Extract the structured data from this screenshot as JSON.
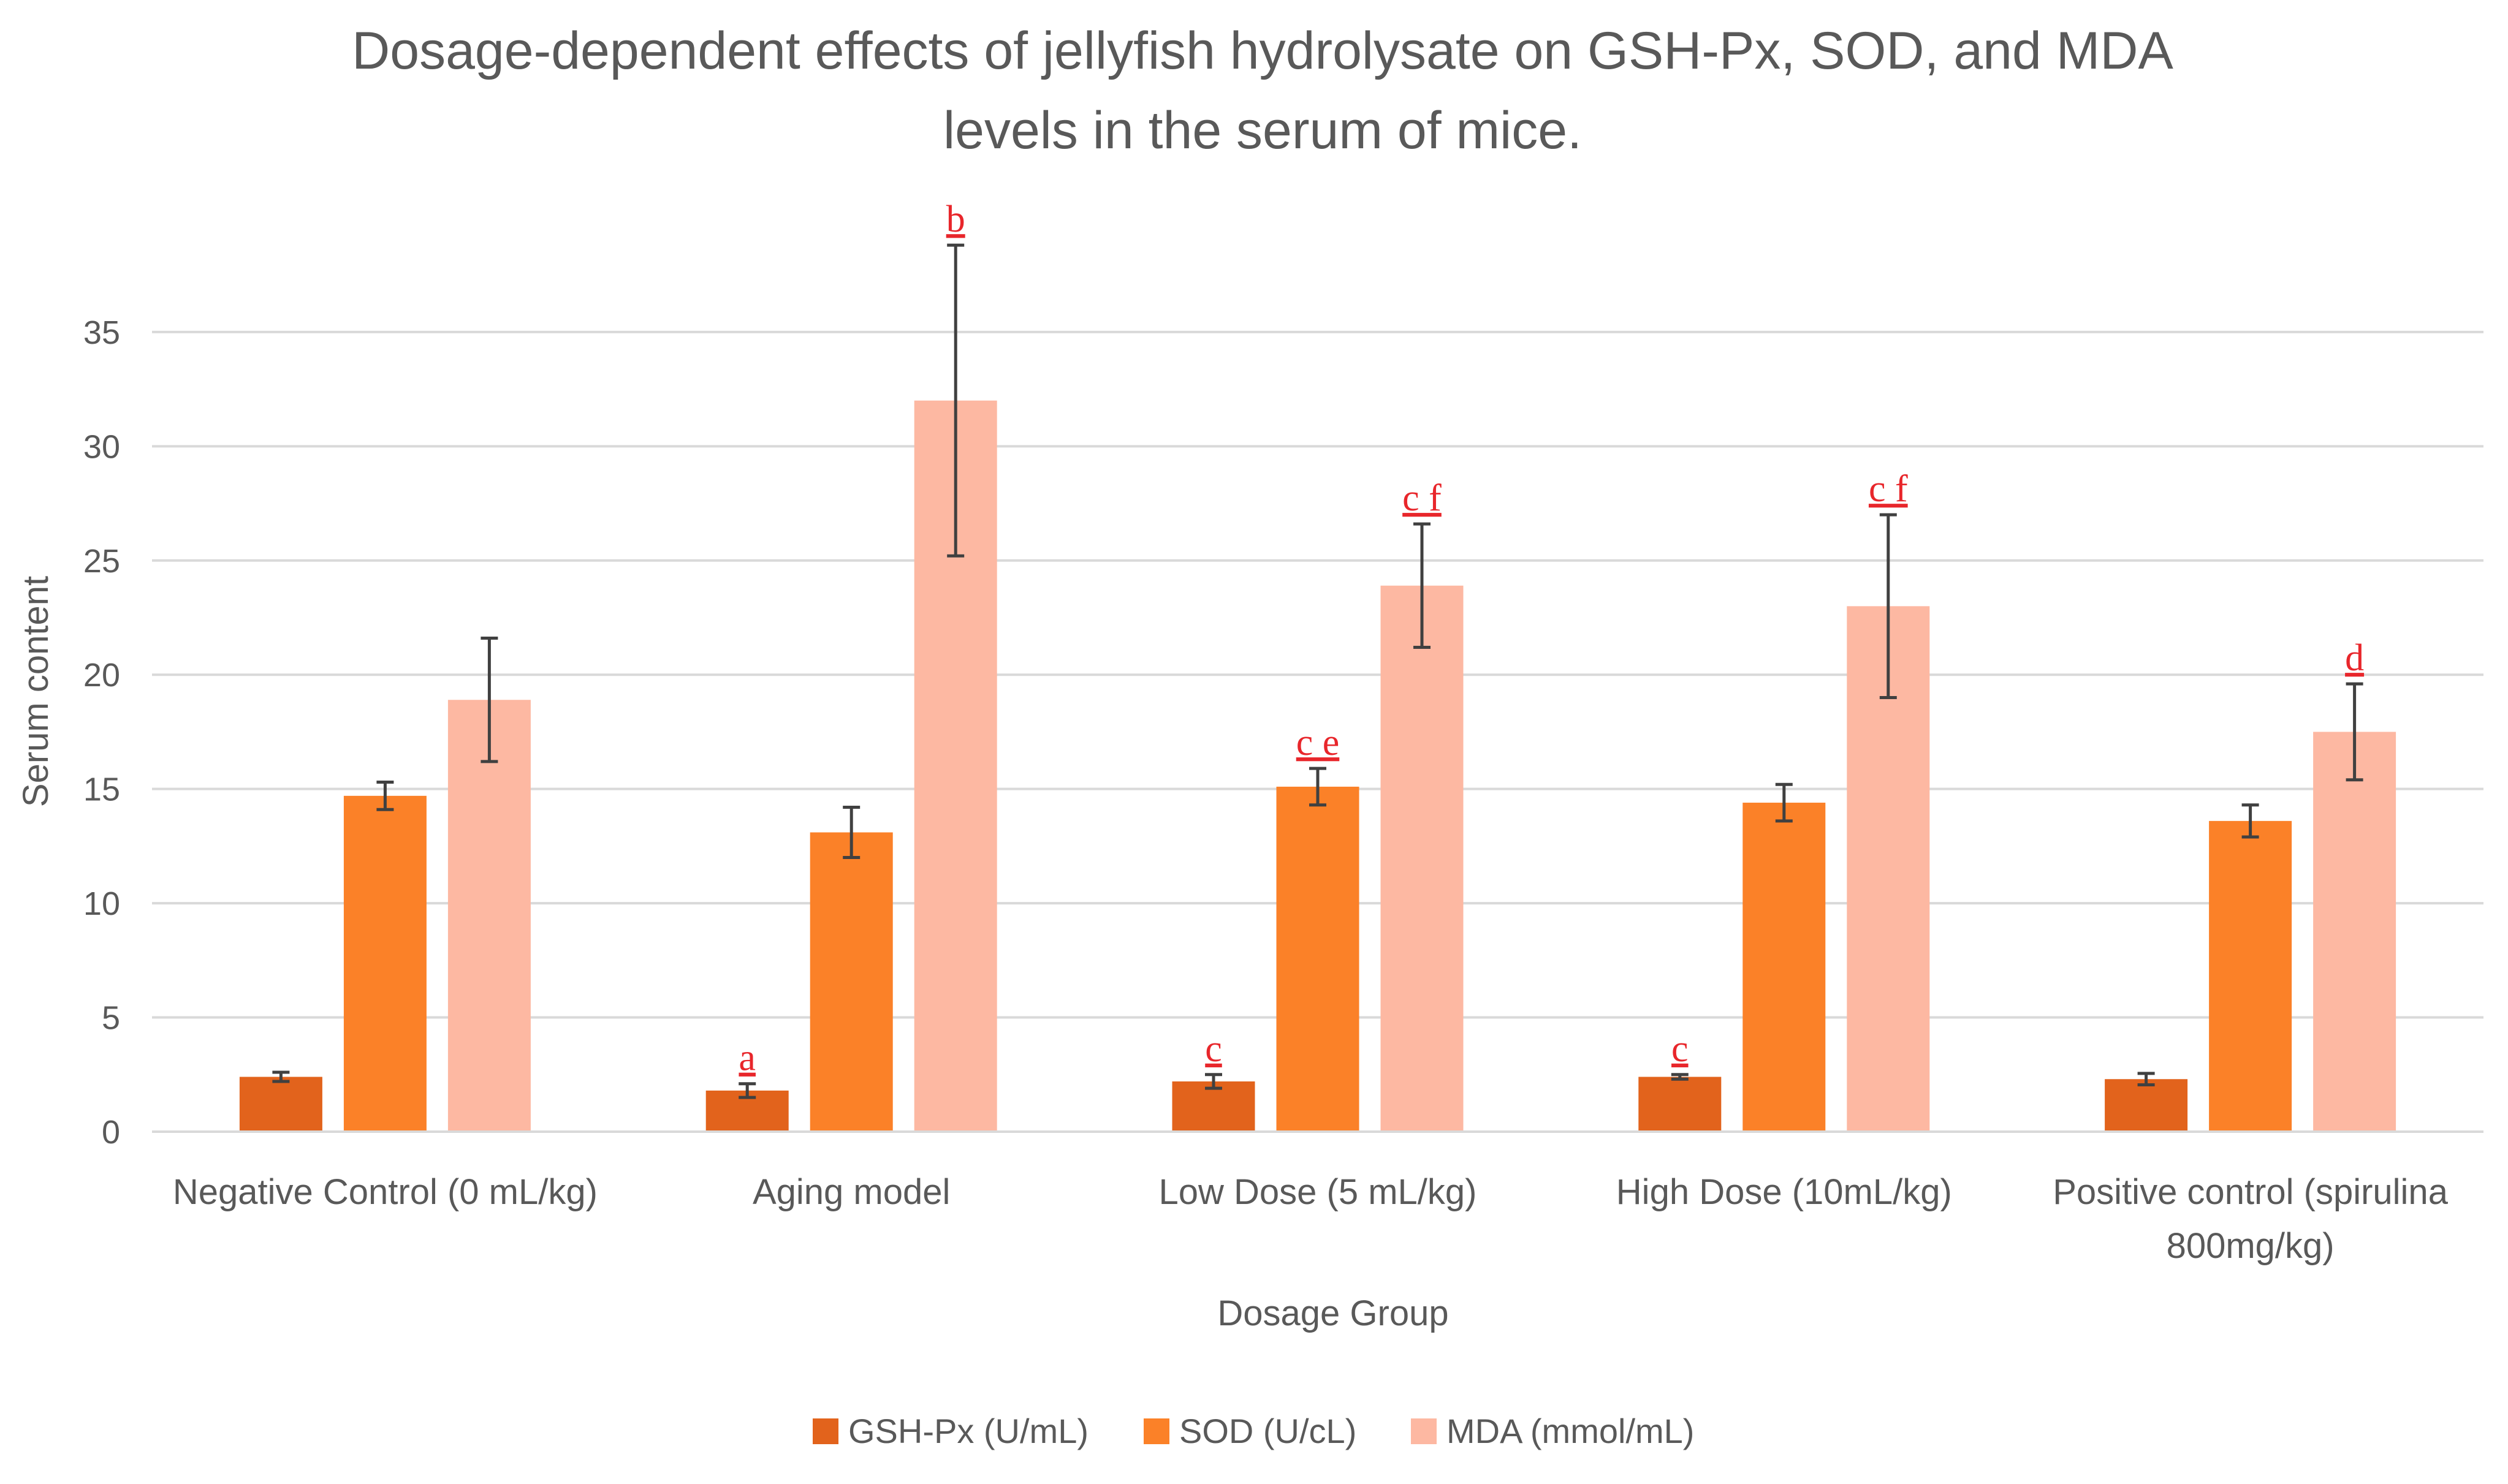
{
  "chart_data": {
    "type": "bar",
    "title_lines": [
      "Dosage-dependent effects of jellyfish hydrolysate on GSH-Px, SOD, and MDA",
      "levels in the serum of mice."
    ],
    "xlabel": "Dosage Group",
    "ylabel": "Serum content",
    "ylim": [
      0,
      38
    ],
    "yticks": [
      0,
      5,
      10,
      15,
      20,
      25,
      30,
      35
    ],
    "grid": true,
    "legend_position": "bottom",
    "categories": [
      [
        "Negative Control (0 mL/kg)"
      ],
      [
        "Aging model"
      ],
      [
        "Low Dose (5 mL/kg)"
      ],
      [
        "High Dose (10mL/kg)"
      ],
      [
        "Positive control (spirulina",
        "800mg/kg)"
      ]
    ],
    "series": [
      {
        "name": "GSH-Px (U/mL)",
        "color": "#E2631C",
        "values": [
          2.4,
          1.8,
          2.2,
          2.4,
          2.3
        ],
        "errors": [
          0.2,
          0.3,
          0.3,
          0.1,
          0.25
        ],
        "annotations": [
          "",
          "a",
          "c",
          "c",
          ""
        ]
      },
      {
        "name": "SOD (U/cL)",
        "color": "#FB8128",
        "values": [
          14.7,
          13.1,
          15.1,
          14.4,
          13.6
        ],
        "errors": [
          0.6,
          1.1,
          0.8,
          0.8,
          0.7
        ],
        "annotations": [
          "",
          "",
          "c e",
          "",
          ""
        ]
      },
      {
        "name": "MDA (mmol/mL)",
        "color": "#FDB8A2",
        "values": [
          18.9,
          32.0,
          23.9,
          23.0,
          17.5
        ],
        "errors": [
          2.7,
          6.8,
          2.7,
          4.0,
          2.1
        ],
        "annotations": [
          "",
          "b",
          "c f",
          "c f",
          "d"
        ]
      }
    ],
    "annotation_color": "#E8262B",
    "errorbar_color": "#404040",
    "gridline_color": "#D9D9D9"
  }
}
